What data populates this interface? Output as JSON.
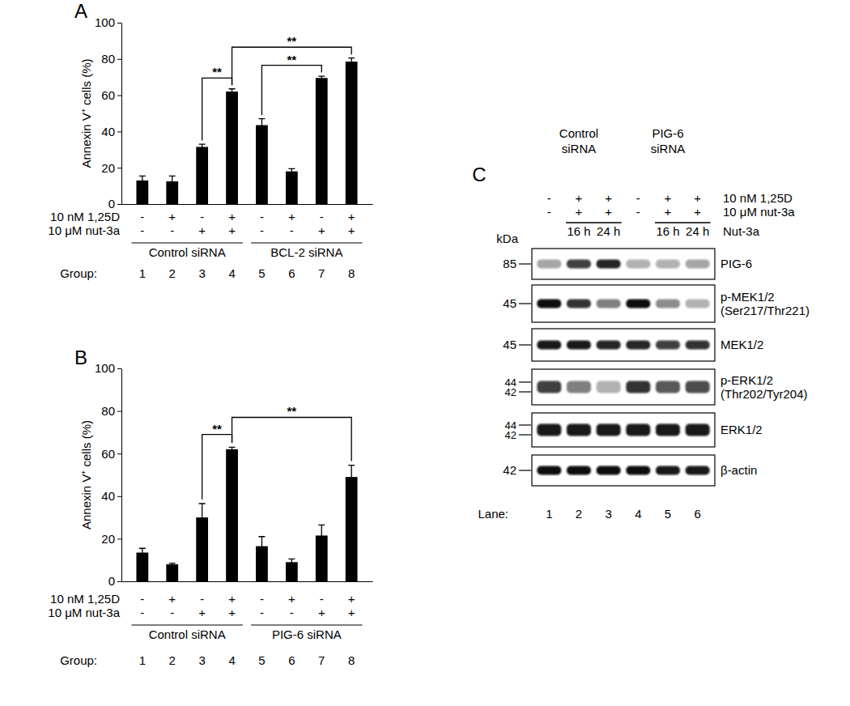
{
  "chart_data": [
    {
      "type": "bar",
      "panel": "A",
      "y_label": "Annexin V⁺ cells (%)",
      "x_label": "Group:",
      "categories": [
        "1",
        "2",
        "3",
        "4",
        "5",
        "6",
        "7",
        "8"
      ],
      "values": [
        13,
        12.5,
        31.5,
        62,
        43.5,
        18,
        69.5,
        78.5
      ],
      "errors": [
        2.5,
        3,
        1.5,
        1.5,
        3.5,
        1.5,
        1,
        2
      ],
      "color": "#000000",
      "ylim": [
        0,
        100
      ],
      "yticks": [
        0,
        20,
        40,
        60,
        80,
        100
      ],
      "conditions": [
        {
          "label": "10 nM 1,25D",
          "values": [
            "-",
            "+",
            "-",
            "+",
            "-",
            "+",
            "-",
            "+"
          ]
        },
        {
          "label": "10 μM nut-3a",
          "values": [
            "-",
            "-",
            "+",
            "+",
            "-",
            "-",
            "+",
            "+"
          ]
        }
      ],
      "category_groups": [
        {
          "label": "Control siRNA",
          "categories": [
            "1",
            "2",
            "3",
            "4"
          ]
        },
        {
          "label": "BCL-2 siRNA",
          "categories": [
            "5",
            "6",
            "7",
            "8"
          ]
        }
      ],
      "annotations": [
        {
          "text": "**",
          "from": "3",
          "to": "4"
        },
        {
          "text": "**",
          "from": "5",
          "to": "7"
        },
        {
          "text": "**",
          "from": "4",
          "to": "8"
        }
      ]
    },
    {
      "type": "bar",
      "panel": "B",
      "y_label": "Annexin V⁺ cells (%)",
      "x_label": "Group:",
      "categories": [
        "1",
        "2",
        "3",
        "4",
        "5",
        "6",
        "7",
        "8"
      ],
      "values": [
        13.5,
        8,
        30,
        62,
        16.5,
        9,
        21.5,
        49
      ],
      "errors": [
        2,
        0.5,
        6.5,
        1,
        4.5,
        1.5,
        5,
        5.5
      ],
      "color": "#000000",
      "ylim": [
        0,
        100
      ],
      "yticks": [
        0,
        20,
        40,
        60,
        80,
        100
      ],
      "conditions": [
        {
          "label": "10 nM 1,25D",
          "values": [
            "-",
            "+",
            "-",
            "+",
            "-",
            "+",
            "-",
            "+"
          ]
        },
        {
          "label": "10 μM nut-3a",
          "values": [
            "-",
            "-",
            "+",
            "+",
            "-",
            "-",
            "+",
            "+"
          ]
        }
      ],
      "category_groups": [
        {
          "label": "Control siRNA",
          "categories": [
            "1",
            "2",
            "3",
            "4"
          ]
        },
        {
          "label": "PIG-6 siRNA",
          "categories": [
            "5",
            "6",
            "7",
            "8"
          ]
        }
      ],
      "annotations": [
        {
          "text": "**",
          "from": "3",
          "to": "4"
        },
        {
          "text": "**",
          "from": "4",
          "to": "8"
        }
      ]
    }
  ],
  "blot": {
    "panel": "C",
    "groups": [
      {
        "label": [
          "Control",
          "siRNA"
        ],
        "lanes": [
          1,
          2,
          3
        ]
      },
      {
        "label": [
          "PIG-6",
          "siRNA"
        ],
        "lanes": [
          4,
          5,
          6
        ]
      }
    ],
    "conditions": [
      {
        "label": "10 nM 1,25D",
        "values": [
          "-",
          "+",
          "+",
          "-",
          "+",
          "+"
        ]
      },
      {
        "label": "10 μM nut-3a",
        "values": [
          "-",
          "+",
          "+",
          "-",
          "+",
          "+"
        ]
      }
    ],
    "times": [
      null,
      "16 h",
      "24 h",
      null,
      "16 h",
      "24 h"
    ],
    "time_label": "Nut-3a",
    "kda_label": "kDa",
    "rows": [
      {
        "protein": [
          "PIG-6"
        ],
        "kda": [
          85
        ],
        "intensities": [
          0.35,
          0.75,
          0.85,
          0.3,
          0.3,
          0.35
        ]
      },
      {
        "protein": [
          "p-MEK1/2",
          "(Ser217/Thr221)"
        ],
        "kda": [
          45
        ],
        "intensities": [
          0.95,
          0.8,
          0.5,
          0.95,
          0.45,
          0.3
        ]
      },
      {
        "protein": [
          "MEK1/2"
        ],
        "kda": [
          45
        ],
        "intensities": [
          0.9,
          0.9,
          0.85,
          0.85,
          0.75,
          0.8
        ]
      },
      {
        "protein": [
          "p-ERK1/2",
          "(Thr202/Tyr204)"
        ],
        "kda": [
          44,
          42
        ],
        "intensities": [
          0.75,
          0.5,
          0.3,
          0.8,
          0.65,
          0.7
        ]
      },
      {
        "protein": [
          "ERK1/2"
        ],
        "kda": [
          44,
          42
        ],
        "intensities": [
          0.9,
          0.9,
          0.9,
          0.9,
          0.9,
          0.9
        ]
      },
      {
        "protein": [
          "β-actin"
        ],
        "kda": [
          42
        ],
        "intensities": [
          0.95,
          0.95,
          0.95,
          0.95,
          0.9,
          0.9
        ]
      }
    ],
    "lane_label": "Lane:",
    "lanes": [
      1,
      2,
      3,
      4,
      5,
      6
    ]
  }
}
